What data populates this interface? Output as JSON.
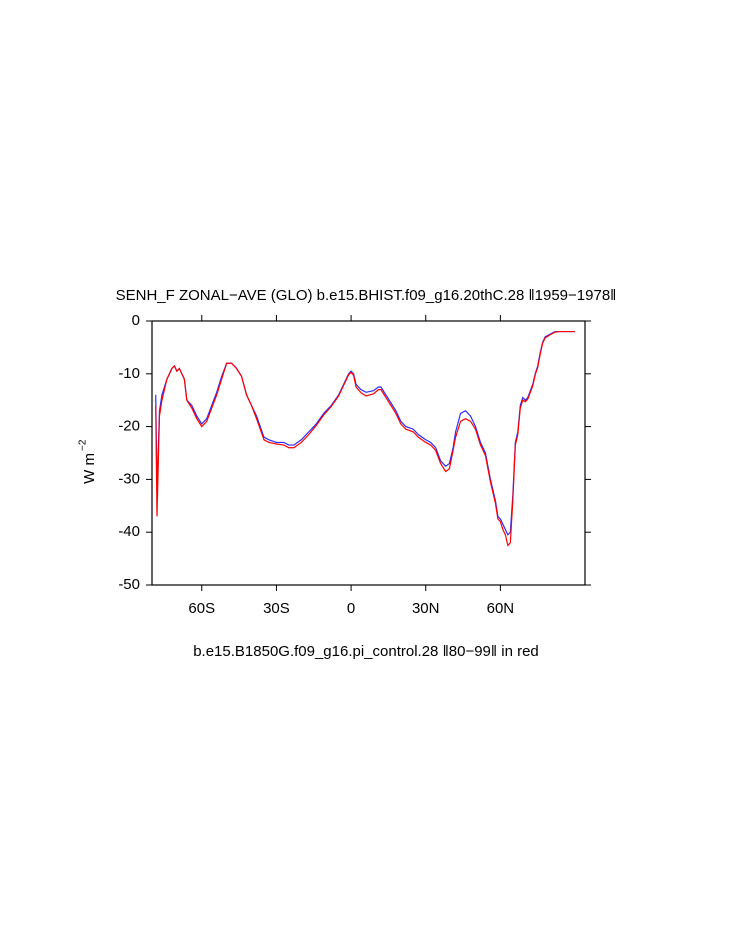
{
  "chart_data": {
    "type": "line",
    "title": "SENH_F ZONAL−AVE (GLO) b.e15.BHIST.f09_g16.20thC.28 ‖1959−1978‖",
    "subtitle": "b.e15.B1850G.f09_g16.pi_control.28 ‖80−99‖ in red",
    "ylabel": "W m",
    "ylabel_superscript": "−2",
    "x": [
      -78.5,
      -78,
      -77,
      -76,
      -74,
      -72,
      -71,
      -70,
      -69,
      -67,
      -66,
      -64,
      -62,
      -60,
      -58,
      -56,
      -54,
      -52,
      -50,
      -48,
      -46,
      -44,
      -42,
      -40,
      -38,
      -35,
      -33,
      -30,
      -27,
      -25,
      -23,
      -20,
      -17,
      -14,
      -11,
      -8,
      -5,
      -3,
      -1,
      0,
      1,
      2,
      4,
      6,
      9,
      11,
      12,
      14,
      16,
      18,
      20,
      22,
      25,
      27,
      30,
      32,
      34,
      36,
      38,
      39.5,
      41,
      42,
      44,
      46,
      48,
      50,
      52,
      54,
      56,
      58,
      59,
      60,
      61,
      62,
      63,
      64,
      65,
      66,
      67,
      68,
      69,
      70,
      71,
      73,
      74,
      75,
      76,
      77,
      78,
      80,
      82,
      84,
      87,
      90
    ],
    "series": [
      {
        "name": "b.e15.BHIST.f09_g16.20thC.28",
        "color": "#2b2bff",
        "values": [
          -14,
          -32,
          -17,
          -14,
          -11,
          -9,
          -8.5,
          -9.5,
          -9,
          -11,
          -15,
          -16,
          -18,
          -19.5,
          -18.5,
          -16,
          -13.5,
          -10.5,
          -8,
          -8,
          -9,
          -10.5,
          -14,
          -16,
          -18,
          -22,
          -22.5,
          -23,
          -23,
          -23.5,
          -23.5,
          -22.5,
          -21,
          -19.5,
          -17.5,
          -16,
          -14,
          -12,
          -10,
          -9.5,
          -10,
          -12,
          -13,
          -13.5,
          -13.2,
          -12.5,
          -12.5,
          -14,
          -15.5,
          -17,
          -19,
          -20,
          -20.5,
          -21.5,
          -22.5,
          -23,
          -24,
          -26.5,
          -27.5,
          -27,
          -24,
          -21,
          -17.5,
          -17,
          -18,
          -20,
          -23,
          -25,
          -30,
          -34,
          -37,
          -37.5,
          -38.5,
          -39.5,
          -40.5,
          -40,
          -33,
          -23,
          -21,
          -16,
          -14.5,
          -15,
          -14.5,
          -12,
          -10,
          -8.5,
          -6,
          -4,
          -3,
          -2.5,
          -2,
          -2,
          -2,
          -2
        ]
      },
      {
        "name": "b.e15.B1850G.f09_g16.pi_control.28",
        "color": "#ff0000",
        "values": [
          -16,
          -37,
          -18,
          -15,
          -11,
          -9,
          -8.5,
          -9.5,
          -9,
          -11,
          -15,
          -16.5,
          -18.5,
          -20,
          -19,
          -16.5,
          -14,
          -11,
          -8,
          -8,
          -9,
          -10.5,
          -14,
          -16,
          -18.5,
          -22.5,
          -23,
          -23.3,
          -23.5,
          -24,
          -24,
          -23,
          -21.5,
          -19.8,
          -17.8,
          -16.2,
          -14.2,
          -12.2,
          -10.2,
          -9.7,
          -10.3,
          -12.5,
          -13.6,
          -14.2,
          -13.8,
          -13,
          -13,
          -14.5,
          -16,
          -17.5,
          -19.5,
          -20.5,
          -21,
          -22,
          -23,
          -23.5,
          -24.5,
          -27,
          -28.5,
          -28,
          -24.5,
          -22,
          -19,
          -18.5,
          -19,
          -20.5,
          -23.5,
          -25.5,
          -30.5,
          -34.5,
          -37.5,
          -38,
          -39.5,
          -40.5,
          -42.5,
          -42,
          -34,
          -23.5,
          -21.5,
          -16.5,
          -15,
          -15.3,
          -14.8,
          -12.3,
          -10.2,
          -8.8,
          -6.3,
          -4.2,
          -3.2,
          -2.6,
          -2.1,
          -2,
          -2,
          -2
        ]
      }
    ],
    "xlim": [
      -80,
      94
    ],
    "xticks": [
      {
        "value": -60,
        "label": "60S"
      },
      {
        "value": -30,
        "label": "30S"
      },
      0,
      {
        "value": 30,
        "label": "30N"
      },
      {
        "value": 60,
        "label": "60N"
      }
    ],
    "ylim": [
      -50,
      0
    ],
    "yticks": [
      0,
      -10,
      -20,
      -30,
      -40,
      -50
    ]
  }
}
